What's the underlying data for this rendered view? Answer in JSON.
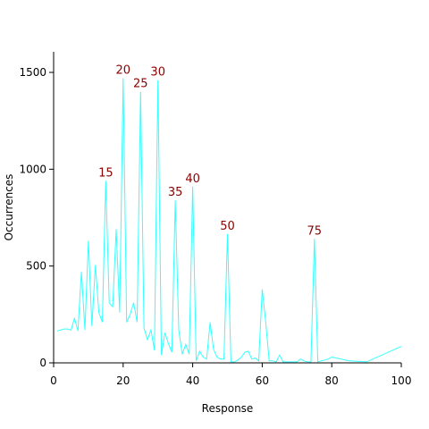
{
  "chart_data": {
    "type": "line",
    "xlabel": "Response",
    "ylabel": "Occurrences",
    "xlim": [
      0,
      100
    ],
    "ylim": [
      0,
      1600
    ],
    "xticks": [
      0,
      20,
      40,
      60,
      80,
      100
    ],
    "yticks": [
      0,
      500,
      1000,
      1500
    ],
    "grid": false,
    "series": [
      {
        "color": "#33ffff",
        "x": [
          1,
          2,
          3,
          4,
          5,
          6,
          7,
          8,
          9,
          10,
          11,
          12,
          13,
          14,
          15,
          16,
          17,
          18,
          19,
          20,
          21,
          22,
          23,
          24,
          25,
          26,
          27,
          28,
          29,
          30,
          31,
          32,
          33,
          34,
          35,
          36,
          37,
          38,
          39,
          40,
          41,
          42,
          43,
          44,
          45,
          46,
          47,
          48,
          49,
          50,
          51,
          52,
          53,
          54,
          55,
          56,
          57,
          58,
          59,
          60,
          61,
          62,
          63,
          64,
          65,
          66,
          67,
          68,
          69,
          70,
          71,
          72,
          73,
          74,
          75,
          76,
          77,
          78,
          79,
          80,
          85,
          90,
          100
        ],
        "y": [
          165,
          170,
          175,
          175,
          170,
          230,
          165,
          470,
          170,
          630,
          190,
          505,
          260,
          210,
          940,
          310,
          290,
          690,
          260,
          1470,
          210,
          250,
          310,
          210,
          1400,
          180,
          120,
          170,
          65,
          1460,
          40,
          155,
          100,
          55,
          840,
          170,
          45,
          95,
          45,
          910,
          10,
          60,
          30,
          20,
          210,
          70,
          30,
          20,
          20,
          665,
          5,
          5,
          15,
          30,
          55,
          60,
          20,
          25,
          10,
          380,
          210,
          10,
          10,
          5,
          40,
          5,
          5,
          5,
          5,
          5,
          20,
          10,
          5,
          5,
          640,
          5,
          10,
          15,
          20,
          30,
          10,
          5,
          85
        ]
      }
    ],
    "annotations": [
      {
        "x": 15,
        "y": 940,
        "text": "15"
      },
      {
        "x": 20,
        "y": 1470,
        "text": "20"
      },
      {
        "x": 25,
        "y": 1400,
        "text": "25"
      },
      {
        "x": 30,
        "y": 1460,
        "text": "30"
      },
      {
        "x": 35,
        "y": 840,
        "text": "35"
      },
      {
        "x": 40,
        "y": 910,
        "text": "40"
      },
      {
        "x": 50,
        "y": 665,
        "text": "50"
      },
      {
        "x": 75,
        "y": 640,
        "text": "75"
      }
    ],
    "annotation_color": "#8b0000"
  }
}
